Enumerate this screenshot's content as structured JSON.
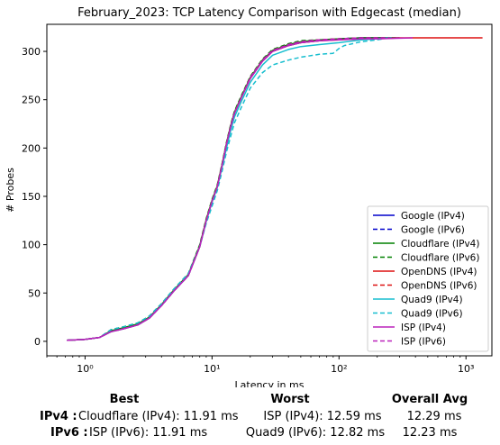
{
  "chart_data": {
    "type": "line",
    "title": "February_2023: TCP Latency Comparison with Edgecast (median)",
    "xlabel": "Latency in ms",
    "ylabel": "# Probes",
    "xscale": "log",
    "xlim": [
      0.5,
      1600
    ],
    "ylim": [
      -15,
      328
    ],
    "xticks": [
      1,
      10,
      100,
      1000
    ],
    "xtick_labels": [
      "10⁰",
      "10¹",
      "10²",
      "10³"
    ],
    "yticks": [
      0,
      50,
      100,
      150,
      200,
      250,
      300
    ],
    "grid": false,
    "legend_position": "lower right",
    "series": [
      {
        "name": "Google (IPv4)",
        "color": "#0000cc",
        "dash": "solid",
        "x": [
          0.72,
          1.0,
          1.3,
          1.6,
          2.0,
          2.6,
          3.2,
          4.0,
          5.0,
          6.5,
          8.0,
          9.0,
          10.0,
          11.0,
          12.0,
          13.0,
          14.0,
          15.0,
          17.0,
          20.0,
          25.0,
          30.0,
          40.0,
          50.0,
          70.0,
          100.0,
          150.0,
          200.0,
          300.0
        ],
        "y": [
          1,
          2,
          4,
          10,
          13,
          17,
          24,
          37,
          52,
          68,
          98,
          125,
          145,
          160,
          182,
          204,
          222,
          236,
          252,
          272,
          290,
          300,
          306,
          309,
          311,
          313,
          314,
          314,
          314
        ]
      },
      {
        "name": "Google (IPv6)",
        "color": "#0000cc",
        "dash": "dashed",
        "x": [
          0.72,
          1.0,
          1.3,
          1.6,
          2.0,
          2.6,
          3.2,
          4.0,
          5.0,
          6.5,
          8.0,
          9.0,
          10.0,
          11.0,
          12.0,
          13.0,
          14.0,
          15.0,
          17.0,
          20.0,
          25.0,
          30.0,
          40.0,
          50.0,
          70.0,
          100.0,
          150.0,
          200.0,
          250.0
        ],
        "y": [
          1,
          2,
          4,
          10,
          13,
          17,
          24,
          37,
          52,
          68,
          98,
          125,
          145,
          160,
          182,
          204,
          222,
          236,
          252,
          273,
          291,
          301,
          307,
          310,
          312,
          313,
          314,
          314,
          314
        ]
      },
      {
        "name": "Cloudflare (IPv4)",
        "color": "#008000",
        "dash": "solid",
        "x": [
          0.72,
          1.0,
          1.3,
          1.6,
          2.0,
          2.6,
          3.2,
          4.0,
          5.0,
          6.5,
          8.0,
          9.0,
          10.0,
          11.0,
          12.0,
          13.0,
          14.0,
          15.0,
          17.0,
          20.0,
          25.0,
          30.0,
          40.0,
          50.0,
          70.0,
          100.0,
          150.0,
          200.0,
          280.0
        ],
        "y": [
          1,
          2,
          4,
          11,
          14,
          18,
          25,
          38,
          53,
          69,
          99,
          126,
          146,
          161,
          183,
          205,
          223,
          237,
          253,
          273,
          291,
          301,
          307,
          310,
          312,
          313,
          314,
          314,
          314
        ]
      },
      {
        "name": "Cloudflare (IPv6)",
        "color": "#008000",
        "dash": "dashed",
        "x": [
          0.72,
          1.0,
          1.3,
          1.6,
          2.0,
          2.6,
          3.2,
          4.0,
          5.0,
          6.5,
          8.0,
          9.0,
          10.0,
          11.0,
          12.0,
          13.0,
          14.0,
          15.0,
          17.0,
          20.0,
          25.0,
          30.0,
          40.0,
          50.0,
          70.0,
          100.0,
          150.0,
          200.0,
          260.0
        ],
        "y": [
          1,
          2,
          4,
          12,
          15,
          19,
          26,
          39,
          54,
          70,
          100,
          127,
          147,
          162,
          184,
          206,
          224,
          238,
          254,
          274,
          292,
          302,
          308,
          311,
          312,
          313,
          314,
          314,
          314
        ]
      },
      {
        "name": "OpenDNS (IPv4)",
        "color": "#dd1111",
        "dash": "solid",
        "x": [
          0.72,
          1.0,
          1.3,
          1.6,
          2.0,
          2.6,
          3.2,
          4.0,
          5.0,
          6.5,
          8.0,
          9.0,
          10.0,
          11.0,
          12.0,
          13.0,
          14.0,
          15.0,
          17.0,
          20.0,
          25.0,
          30.0,
          40.0,
          50.0,
          70.0,
          100.0,
          150.0,
          200.0,
          300.0,
          500.0,
          1000.0,
          1350.0
        ],
        "y": [
          1,
          2,
          4,
          10,
          13,
          17,
          24,
          37,
          52,
          68,
          98,
          125,
          145,
          160,
          182,
          204,
          222,
          236,
          252,
          272,
          290,
          300,
          306,
          309,
          311,
          312,
          313,
          313,
          314,
          314,
          314,
          314
        ]
      },
      {
        "name": "OpenDNS (IPv6)",
        "color": "#dd1111",
        "dash": "dashed",
        "x": [
          0.72,
          1.0,
          1.3,
          1.6,
          2.0,
          2.6,
          3.2,
          4.0,
          5.0,
          6.5,
          8.0,
          9.0,
          10.0,
          11.0,
          12.0,
          13.0,
          14.0,
          15.0,
          17.0,
          20.0,
          25.0,
          30.0,
          40.0,
          50.0,
          70.0,
          100.0,
          150.0,
          200.0,
          280.0
        ],
        "y": [
          1,
          2,
          4,
          10,
          13,
          17,
          24,
          37,
          52,
          68,
          98,
          125,
          145,
          160,
          182,
          204,
          222,
          236,
          252,
          273,
          291,
          301,
          307,
          310,
          312,
          313,
          314,
          314,
          314
        ]
      },
      {
        "name": "Quad9 (IPv4)",
        "color": "#17becf",
        "dash": "solid",
        "x": [
          0.72,
          1.0,
          1.3,
          1.6,
          2.0,
          2.6,
          3.2,
          4.0,
          5.0,
          6.5,
          8.0,
          9.0,
          10.0,
          11.0,
          12.0,
          13.0,
          14.0,
          15.0,
          17.0,
          20.0,
          25.0,
          30.0,
          40.0,
          50.0,
          70.0,
          100.0,
          150.0,
          200.0,
          260.0
        ],
        "y": [
          1,
          2,
          4,
          10,
          13,
          17,
          24,
          37,
          52,
          68,
          98,
          124,
          144,
          159,
          180,
          200,
          218,
          232,
          248,
          268,
          286,
          296,
          302,
          305,
          307,
          309,
          312,
          313,
          314
        ]
      },
      {
        "name": "Quad9 (IPv6)",
        "color": "#17becf",
        "dash": "dashed",
        "x": [
          0.72,
          1.0,
          1.3,
          1.6,
          2.0,
          2.6,
          3.2,
          4.0,
          5.0,
          6.5,
          8.0,
          9.0,
          10.0,
          11.0,
          12.0,
          13.0,
          14.0,
          15.0,
          17.0,
          20.0,
          25.0,
          30.0,
          40.0,
          50.0,
          70.0,
          90.0,
          100.0,
          110.0,
          150.0,
          200.0,
          250.0
        ],
        "y": [
          1,
          2,
          4,
          12,
          15,
          19,
          26,
          39,
          54,
          70,
          98,
          122,
          140,
          156,
          176,
          196,
          212,
          226,
          242,
          262,
          278,
          286,
          291,
          294,
          297,
          298,
          303,
          306,
          310,
          312,
          314
        ]
      },
      {
        "name": "ISP (IPv4)",
        "color": "#bb22bb",
        "dash": "solid",
        "x": [
          0.72,
          1.0,
          1.3,
          1.6,
          2.0,
          2.6,
          3.2,
          4.0,
          5.0,
          6.5,
          8.0,
          9.0,
          10.0,
          11.0,
          12.0,
          13.0,
          14.0,
          15.0,
          17.0,
          20.0,
          25.0,
          30.0,
          40.0,
          50.0,
          70.0,
          100.0,
          150.0,
          200.0,
          380.0
        ],
        "y": [
          1,
          2,
          4,
          10,
          13,
          17,
          24,
          37,
          52,
          68,
          98,
          125,
          145,
          160,
          182,
          204,
          222,
          236,
          252,
          272,
          290,
          300,
          306,
          309,
          311,
          312,
          313,
          313,
          314
        ]
      },
      {
        "name": "ISP (IPv6)",
        "color": "#bb22bb",
        "dash": "dashed",
        "x": [
          0.72,
          1.0,
          1.3,
          1.6,
          2.0,
          2.6,
          3.2,
          4.0,
          5.0,
          6.5,
          8.0,
          9.0,
          10.0,
          11.0,
          12.0,
          13.0,
          14.0,
          15.0,
          17.0,
          20.0,
          25.0,
          30.0,
          40.0,
          50.0,
          70.0,
          100.0,
          150.0,
          200.0,
          250.0
        ],
        "y": [
          1,
          2,
          4,
          10,
          13,
          17,
          24,
          37,
          52,
          68,
          98,
          125,
          145,
          160,
          182,
          204,
          222,
          236,
          252,
          273,
          291,
          301,
          307,
          310,
          312,
          313,
          314,
          314,
          314
        ]
      }
    ]
  },
  "summary": {
    "headers": {
      "best": "Best",
      "worst": "Worst",
      "overall": "Overall Avg"
    },
    "rows": [
      {
        "label": "IPv4 :",
        "best": "Cloudflare (IPv4): 11.91 ms",
        "worst": "ISP (IPv4): 12.59 ms",
        "overall": "12.29 ms"
      },
      {
        "label": "IPv6 :",
        "best": "ISP (IPv6): 11.91 ms",
        "worst": "Quad9 (IPv6): 12.82 ms",
        "overall": "12.23 ms"
      }
    ]
  }
}
